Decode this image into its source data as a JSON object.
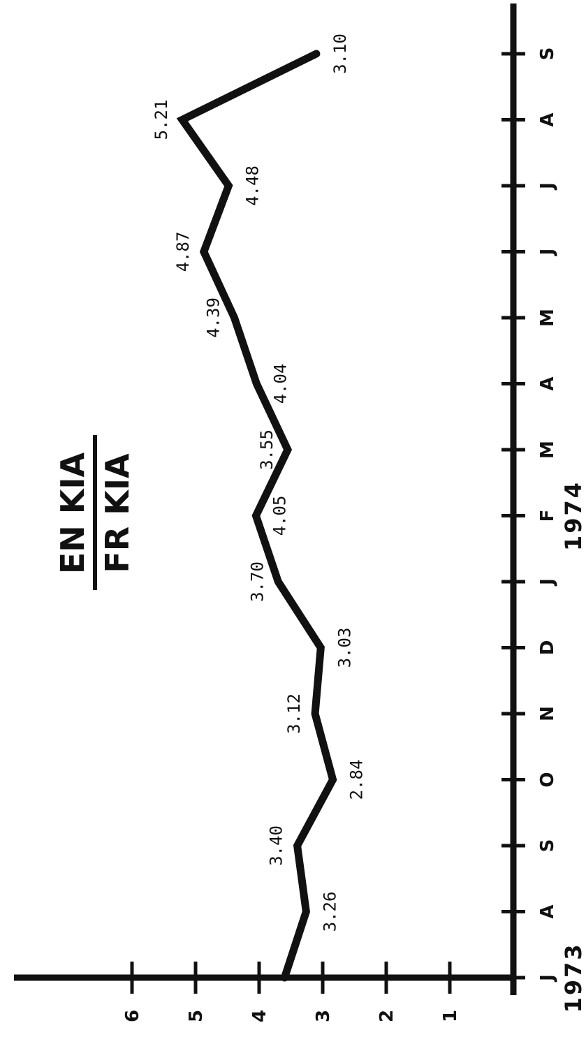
{
  "chart_data": {
    "type": "line",
    "title_numerator": "EN KIA",
    "title_denominator": "FR KIA",
    "x": [
      "J",
      "A",
      "S",
      "O",
      "N",
      "D",
      "J",
      "F",
      "M",
      "A",
      "M",
      "J",
      "J",
      "A",
      "S"
    ],
    "x_years": [
      "1973",
      "1974"
    ],
    "series": [
      {
        "values": [
          3.6,
          3.26,
          3.4,
          2.84,
          3.12,
          3.03,
          3.7,
          4.05,
          3.55,
          4.04,
          4.39,
          4.87,
          4.48,
          5.21,
          3.1
        ]
      }
    ],
    "data_labels": [
      "",
      "3.26",
      "3.40",
      "2.84",
      "3.12",
      "3.03",
      "3.70",
      "4.05",
      "3.55",
      "4.04",
      "4.39",
      "4.87",
      "4.48",
      "5.21",
      "3.10"
    ],
    "y_ticks": [
      "1",
      "2",
      "3",
      "4",
      "5",
      "6"
    ],
    "ylim": [
      0,
      6.6
    ],
    "grid": false,
    "orientation": "rotated-90-ccw"
  }
}
